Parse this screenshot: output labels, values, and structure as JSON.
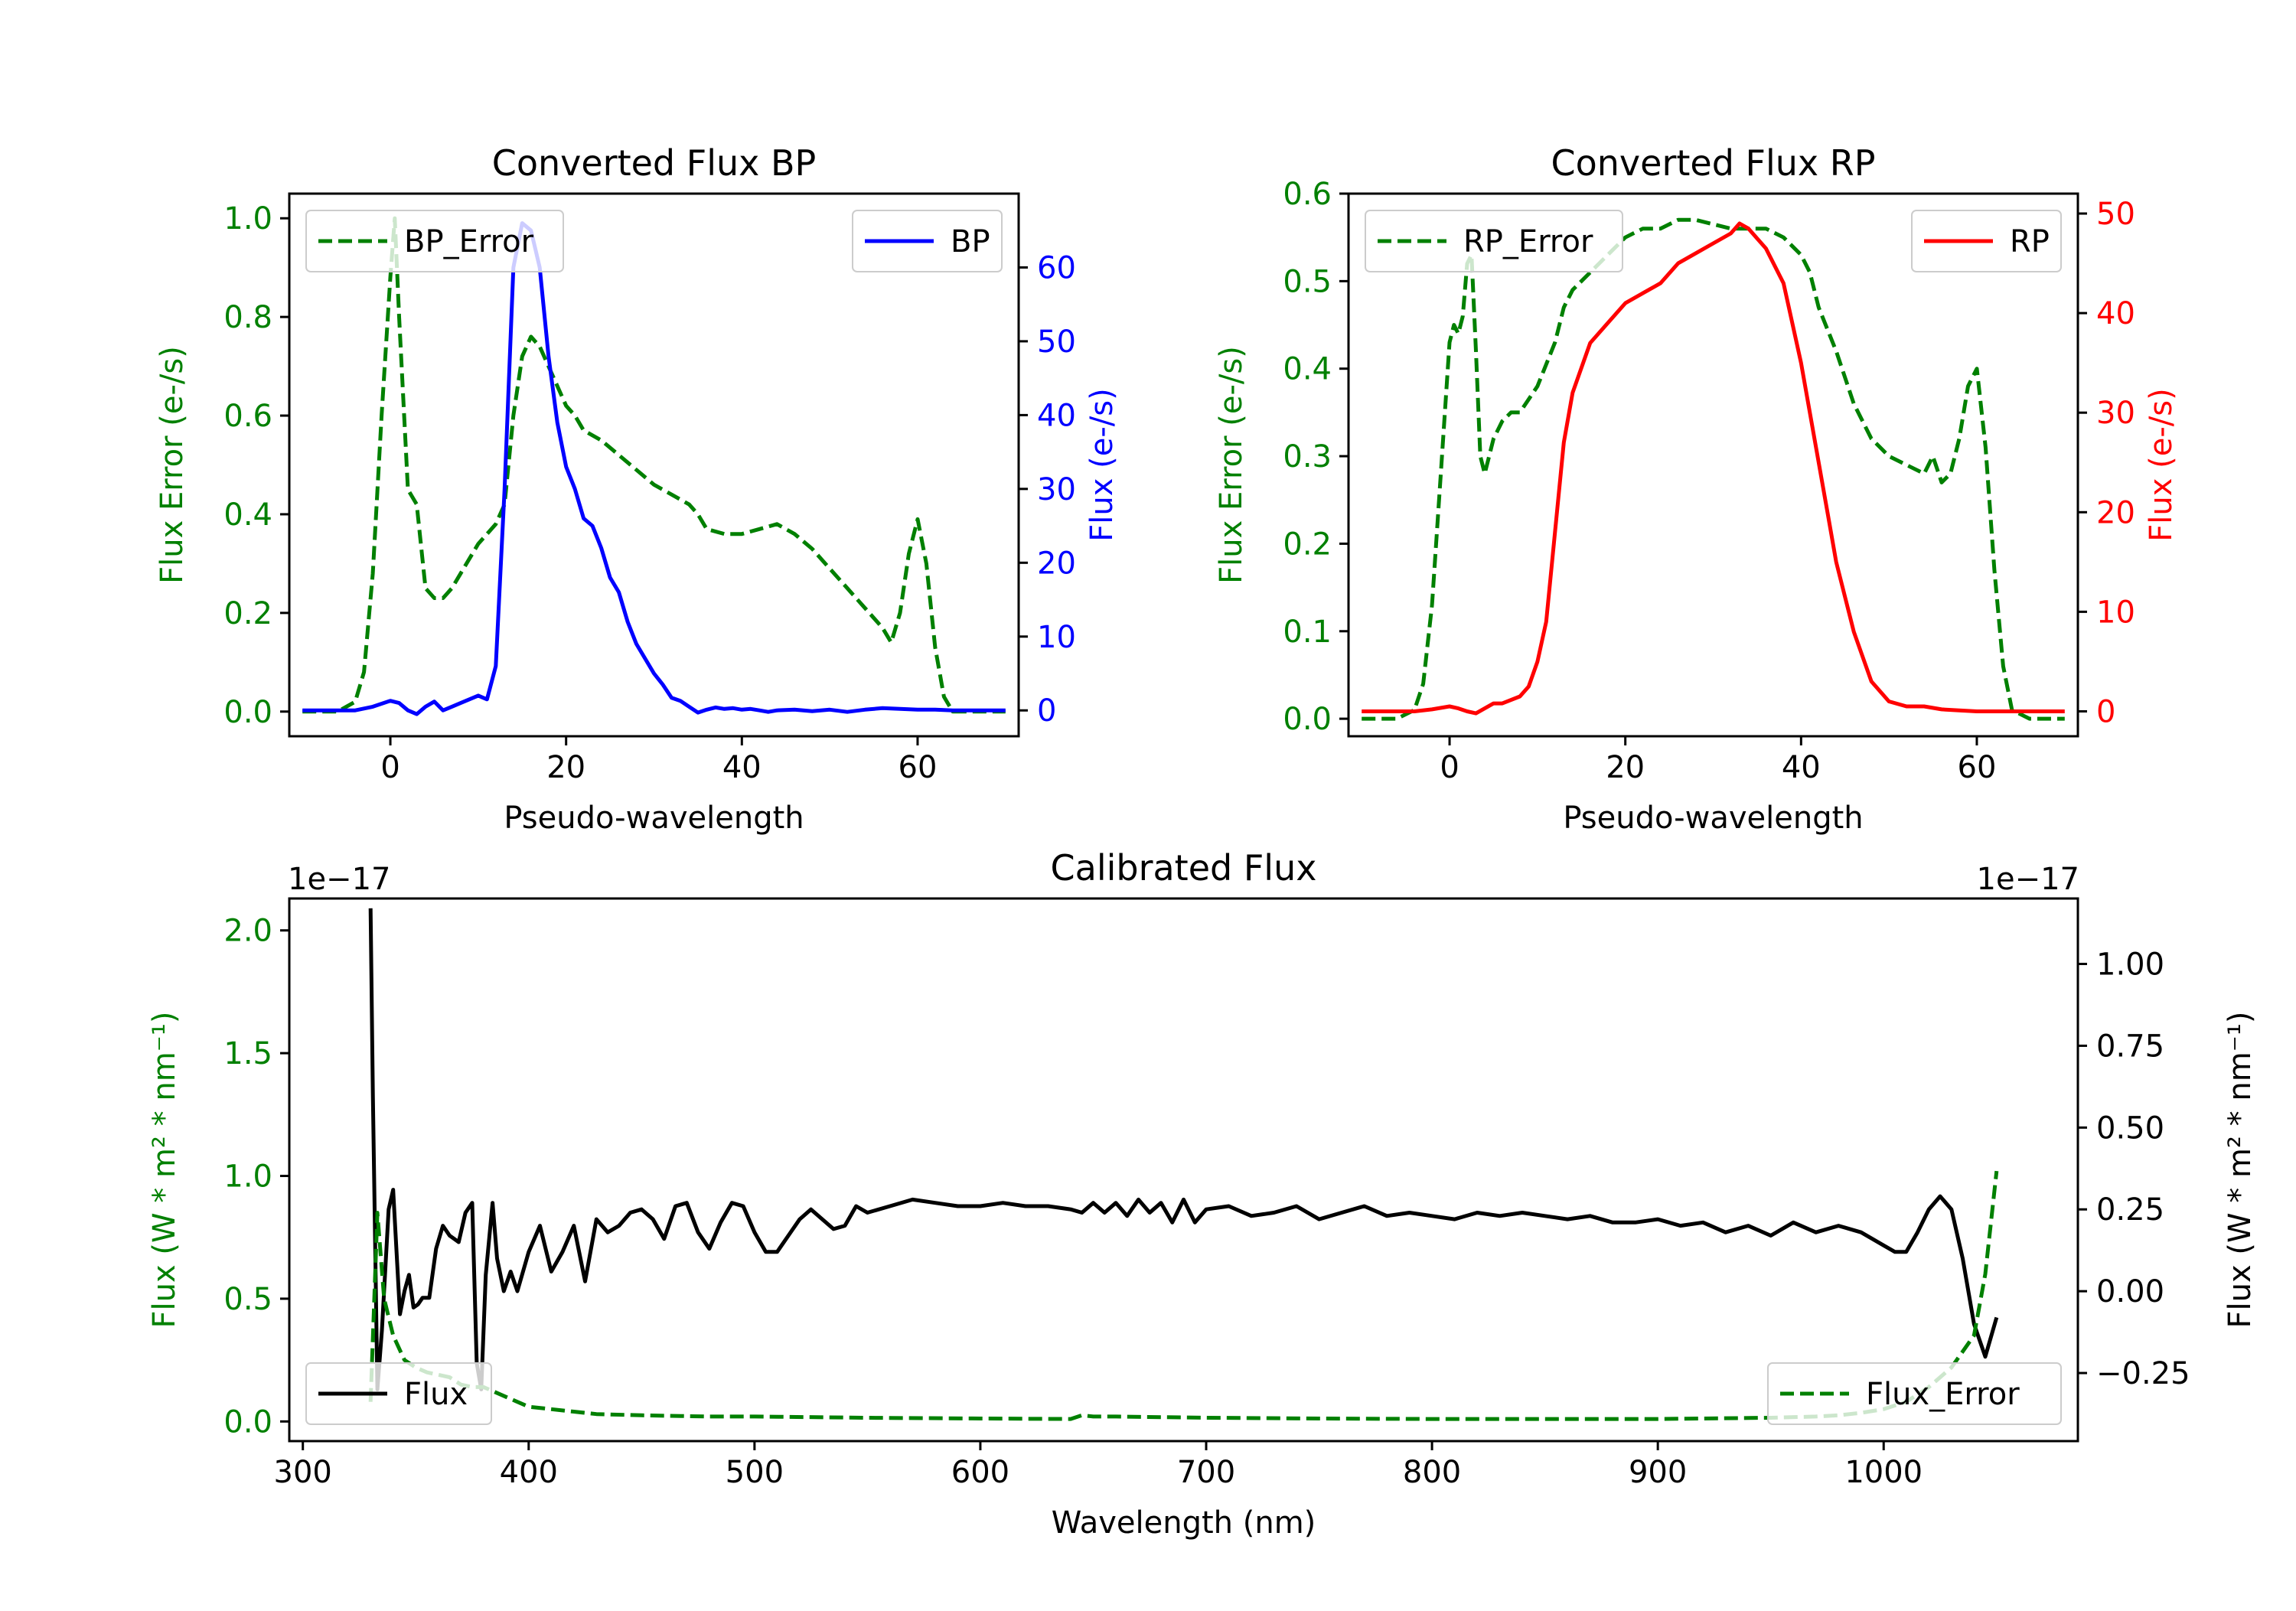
{
  "colors": {
    "error": "#008000",
    "bp": "#0000ff",
    "rp": "#ff0000",
    "flux": "#000000",
    "axis": "#000000",
    "legend_border": "#cccccc"
  },
  "chart_data": [
    {
      "type": "line",
      "title": "Converted Flux BP",
      "xlabel": "Pseudo-wavelength",
      "ylabel_left": "Flux Error (e-/s)",
      "ylabel_right": "Flux (e-/s)",
      "xlim": [
        -11.5,
        71.5
      ],
      "ylim_left": [
        -0.05,
        1.05
      ],
      "ylim_right": [
        -3.5,
        70
      ],
      "xticks": [
        0,
        20,
        40,
        60
      ],
      "yticks_left": [
        0.0,
        0.2,
        0.4,
        0.6,
        0.8,
        1.0
      ],
      "yticks_right": [
        0,
        10,
        20,
        30,
        40,
        50,
        60
      ],
      "ytick_labels_left": [
        "0.0",
        "0.2",
        "0.4",
        "0.6",
        "0.8",
        "1.0"
      ],
      "ytick_labels_right": [
        "0",
        "10",
        "20",
        "30",
        "40",
        "50",
        "60"
      ],
      "legend_left": "top-left",
      "legend_right": "top-right",
      "series": [
        {
          "name": "BP_Error",
          "axis": "left",
          "style": "dashed",
          "color": "#008000",
          "x": [
            -10,
            -6,
            -4,
            -3,
            -2,
            -1,
            0,
            0.5,
            1,
            2,
            3,
            4,
            5,
            6,
            7,
            8,
            10,
            12,
            13,
            14,
            15,
            16,
            17,
            18,
            19,
            20,
            21,
            22,
            24,
            26,
            28,
            30,
            32,
            34,
            35,
            36,
            38,
            40,
            42,
            44,
            46,
            48,
            50,
            52,
            54,
            56,
            57,
            58,
            59,
            60,
            61,
            62,
            63,
            64,
            66,
            70
          ],
          "y": [
            0.0,
            0.0,
            0.02,
            0.08,
            0.28,
            0.6,
            0.88,
            1.0,
            0.8,
            0.45,
            0.42,
            0.25,
            0.23,
            0.23,
            0.25,
            0.28,
            0.34,
            0.38,
            0.42,
            0.6,
            0.72,
            0.76,
            0.74,
            0.7,
            0.66,
            0.62,
            0.6,
            0.57,
            0.55,
            0.52,
            0.49,
            0.46,
            0.44,
            0.42,
            0.4,
            0.37,
            0.36,
            0.36,
            0.37,
            0.38,
            0.36,
            0.33,
            0.29,
            0.25,
            0.21,
            0.17,
            0.14,
            0.2,
            0.32,
            0.39,
            0.3,
            0.13,
            0.03,
            0.0,
            0.0,
            0.0
          ]
        },
        {
          "name": "BP",
          "axis": "right",
          "style": "solid",
          "color": "#0000ff",
          "x": [
            -10,
            -6,
            -4,
            -2,
            0,
            1,
            2,
            3,
            4,
            5,
            6,
            7,
            8,
            10,
            11,
            12,
            13,
            14,
            15,
            16,
            17,
            18,
            19,
            20,
            21,
            22,
            23,
            24,
            25,
            26,
            27,
            28,
            30,
            31,
            32,
            33,
            34,
            35,
            36,
            37,
            38,
            39,
            40,
            41,
            42,
            43,
            44,
            46,
            48,
            50,
            52,
            54,
            56,
            58,
            60,
            62,
            64,
            66,
            70
          ],
          "y": [
            0,
            0,
            0,
            0.5,
            1.3,
            1.0,
            0,
            -0.5,
            0.5,
            1.2,
            0,
            0.5,
            1.0,
            2.0,
            1.5,
            6,
            30,
            60,
            66,
            65,
            60,
            48,
            39,
            33,
            30,
            26,
            25,
            22,
            18,
            16,
            12,
            9,
            5,
            3.5,
            1.7,
            1.3,
            0.5,
            -0.3,
            0.1,
            0.4,
            0.2,
            0.3,
            0.1,
            0.2,
            0,
            -0.2,
            0,
            0.1,
            -0.1,
            0.1,
            -0.2,
            0.1,
            0.3,
            0.2,
            0.1,
            0.1,
            0,
            0,
            0
          ]
        }
      ]
    },
    {
      "type": "line",
      "title": "Converted Flux RP",
      "xlabel": "Pseudo-wavelength",
      "ylabel_left": "Flux Error (e-/s)",
      "ylabel_right": "Flux (e-/s)",
      "xlim": [
        -11.5,
        71.5
      ],
      "ylim_left": [
        -0.02,
        0.6
      ],
      "ylim_right": [
        -2.5,
        52
      ],
      "xticks": [
        0,
        20,
        40,
        60
      ],
      "yticks_left": [
        0.0,
        0.1,
        0.2,
        0.3,
        0.4,
        0.5,
        0.6
      ],
      "yticks_right": [
        0,
        10,
        20,
        30,
        40,
        50
      ],
      "ytick_labels_left": [
        "0.0",
        "0.1",
        "0.2",
        "0.3",
        "0.4",
        "0.5",
        "0.6"
      ],
      "ytick_labels_right": [
        "0",
        "10",
        "20",
        "30",
        "40",
        "50"
      ],
      "legend_left": "top-left",
      "legend_right": "top-right",
      "series": [
        {
          "name": "RP_Error",
          "axis": "left",
          "style": "dashed",
          "color": "#008000",
          "x": [
            -10,
            -6,
            -4,
            -3,
            -2,
            -1,
            0,
            0.5,
            1,
            1.5,
            2,
            2.5,
            3,
            3.5,
            4,
            5,
            6,
            7,
            8,
            10,
            12,
            13,
            14,
            16,
            18,
            20,
            22,
            24,
            26,
            28,
            30,
            32,
            34,
            36,
            38,
            40,
            41,
            42,
            44,
            46,
            48,
            50,
            52,
            54,
            55,
            56,
            57,
            58,
            59,
            60,
            61,
            62,
            63,
            64,
            66,
            70
          ],
          "y": [
            0.0,
            0.0,
            0.01,
            0.04,
            0.13,
            0.28,
            0.43,
            0.45,
            0.44,
            0.46,
            0.52,
            0.53,
            0.42,
            0.3,
            0.28,
            0.32,
            0.34,
            0.35,
            0.35,
            0.38,
            0.43,
            0.47,
            0.49,
            0.51,
            0.53,
            0.55,
            0.56,
            0.56,
            0.57,
            0.57,
            0.565,
            0.56,
            0.56,
            0.56,
            0.55,
            0.53,
            0.51,
            0.47,
            0.42,
            0.36,
            0.32,
            0.3,
            0.29,
            0.28,
            0.3,
            0.27,
            0.28,
            0.32,
            0.38,
            0.4,
            0.31,
            0.17,
            0.06,
            0.01,
            0.0,
            0.0
          ]
        },
        {
          "name": "RP",
          "axis": "right",
          "style": "solid",
          "color": "#ff0000",
          "x": [
            -10,
            -6,
            -4,
            -2,
            0,
            1,
            2,
            3,
            4,
            5,
            6,
            8,
            9,
            10,
            11,
            12,
            13,
            14,
            16,
            18,
            20,
            22,
            24,
            26,
            28,
            30,
            32,
            33,
            34,
            36,
            38,
            40,
            41,
            42,
            43,
            44,
            46,
            48,
            50,
            52,
            54,
            56,
            58,
            60,
            62,
            64,
            66,
            70
          ],
          "y": [
            0,
            0,
            0,
            0.2,
            0.5,
            0.3,
            0,
            -0.2,
            0.3,
            0.8,
            0.8,
            1.5,
            2.5,
            5,
            9,
            18,
            27,
            32,
            37,
            39,
            41,
            42,
            43,
            45,
            46,
            47,
            48,
            49,
            48.5,
            46.5,
            43,
            35,
            30,
            25,
            20,
            15,
            8,
            3,
            1,
            0.5,
            0.5,
            0.2,
            0.1,
            0,
            0,
            0,
            0,
            0
          ]
        }
      ]
    },
    {
      "type": "line",
      "title": "Calibrated Flux",
      "xlabel": "Wavelength (nm)",
      "ylabel_left": "Flux (W * m² * nm⁻¹)",
      "ylabel_right": "Flux (W * m² * nm⁻¹)",
      "offset_left": "1e−17",
      "offset_right": "1e−17",
      "xlim": [
        294,
        1086
      ],
      "ylim_left": [
        -0.08,
        2.13
      ],
      "ylim_right": [
        -0.458,
        1.2
      ],
      "xticks": [
        300,
        400,
        500,
        600,
        700,
        800,
        900,
        1000
      ],
      "yticks_left": [
        0.0,
        0.5,
        1.0,
        1.5,
        2.0
      ],
      "yticks_right": [
        -0.25,
        0.0,
        0.25,
        0.5,
        0.75,
        1.0
      ],
      "ytick_labels_left": [
        "0.0",
        "0.5",
        "1.0",
        "1.5",
        "2.0"
      ],
      "ytick_labels_right": [
        "−0.25",
        "0.00",
        "0.25",
        "0.50",
        "0.75",
        "1.00"
      ],
      "legend_left": "bottom-left",
      "legend_right": "bottom-right",
      "series": [
        {
          "name": "Flux",
          "axis": "right",
          "style": "solid",
          "color": "#000000",
          "x": [
            330,
            331,
            333,
            335,
            338,
            340,
            343,
            345,
            347,
            349,
            351,
            353,
            356,
            359,
            362,
            365,
            367,
            369,
            372,
            375,
            377,
            379,
            381,
            384,
            386,
            389,
            392,
            395,
            400,
            405,
            410,
            415,
            420,
            425,
            430,
            435,
            440,
            445,
            450,
            455,
            460,
            465,
            470,
            475,
            480,
            485,
            490,
            495,
            500,
            505,
            510,
            515,
            520,
            525,
            530,
            535,
            540,
            545,
            550,
            560,
            570,
            580,
            590,
            600,
            610,
            620,
            630,
            640,
            645,
            650,
            655,
            660,
            665,
            670,
            675,
            680,
            685,
            690,
            695,
            700,
            710,
            720,
            730,
            740,
            750,
            760,
            770,
            780,
            790,
            800,
            810,
            820,
            830,
            840,
            850,
            860,
            870,
            880,
            890,
            900,
            910,
            920,
            930,
            940,
            950,
            960,
            970,
            980,
            990,
            1000,
            1005,
            1010,
            1015,
            1020,
            1025,
            1030,
            1035,
            1040,
            1045,
            1050
          ],
          "y": [
            1.17,
            0.6,
            -0.3,
            -0.12,
            0.25,
            0.31,
            -0.07,
            0.0,
            0.05,
            -0.05,
            -0.04,
            -0.02,
            -0.02,
            0.13,
            0.2,
            0.17,
            0.16,
            0.15,
            0.24,
            0.27,
            -0.22,
            -0.3,
            0.05,
            0.27,
            0.1,
            0.0,
            0.06,
            0.0,
            0.12,
            0.2,
            0.06,
            0.12,
            0.2,
            0.03,
            0.22,
            0.18,
            0.2,
            0.24,
            0.25,
            0.22,
            0.16,
            0.26,
            0.27,
            0.18,
            0.13,
            0.21,
            0.27,
            0.26,
            0.18,
            0.12,
            0.12,
            0.17,
            0.22,
            0.25,
            0.22,
            0.19,
            0.2,
            0.26,
            0.24,
            0.26,
            0.28,
            0.27,
            0.26,
            0.26,
            0.27,
            0.26,
            0.26,
            0.25,
            0.24,
            0.27,
            0.24,
            0.27,
            0.23,
            0.28,
            0.24,
            0.27,
            0.21,
            0.28,
            0.21,
            0.25,
            0.26,
            0.23,
            0.24,
            0.26,
            0.22,
            0.24,
            0.26,
            0.23,
            0.24,
            0.23,
            0.22,
            0.24,
            0.23,
            0.24,
            0.23,
            0.22,
            0.23,
            0.21,
            0.21,
            0.22,
            0.2,
            0.21,
            0.18,
            0.2,
            0.17,
            0.21,
            0.18,
            0.2,
            0.18,
            0.14,
            0.12,
            0.12,
            0.18,
            0.25,
            0.29,
            0.25,
            0.1,
            -0.1,
            -0.2,
            -0.08
          ]
        },
        {
          "name": "Flux_Error",
          "axis": "left",
          "style": "dashed",
          "color": "#008000",
          "x": [
            330,
            333,
            336,
            340,
            345,
            350,
            355,
            360,
            365,
            370,
            375,
            380,
            385,
            390,
            395,
            400,
            410,
            420,
            430,
            450,
            480,
            500,
            550,
            600,
            640,
            645,
            650,
            660,
            700,
            750,
            800,
            850,
            900,
            950,
            970,
            980,
            990,
            1000,
            1010,
            1020,
            1030,
            1040,
            1045,
            1050
          ],
          "y": [
            0.08,
            0.85,
            0.5,
            0.35,
            0.25,
            0.22,
            0.2,
            0.19,
            0.18,
            0.15,
            0.14,
            0.14,
            0.12,
            0.1,
            0.08,
            0.06,
            0.05,
            0.04,
            0.03,
            0.025,
            0.02,
            0.02,
            0.015,
            0.012,
            0.01,
            0.025,
            0.02,
            0.02,
            0.015,
            0.012,
            0.01,
            0.01,
            0.01,
            0.015,
            0.02,
            0.025,
            0.035,
            0.05,
            0.08,
            0.14,
            0.22,
            0.35,
            0.6,
            1.02
          ]
        }
      ]
    }
  ]
}
